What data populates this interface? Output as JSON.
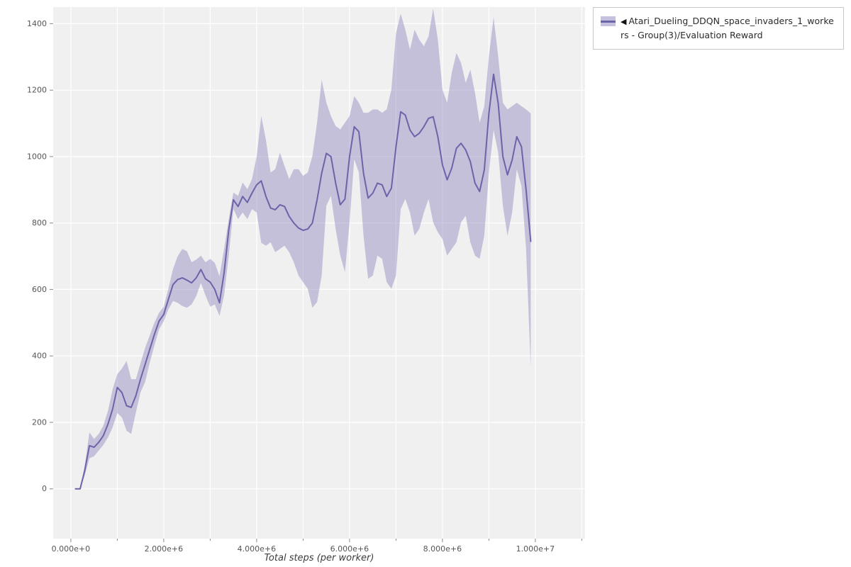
{
  "page": {
    "background": "#ffffff"
  },
  "legend": {
    "marker": "◀",
    "label": "Atari_Dueling_DDQN_space_invaders_1_workers - Group(3)/Evaluation Reward"
  },
  "chart_data": {
    "type": "line",
    "title": "",
    "xlabel": "Total steps (per worker)",
    "ylabel": "",
    "xlim": [
      -380000,
      11070000
    ],
    "ylim": [
      -150,
      1450
    ],
    "grid": true,
    "legend_position": "top-right-outside",
    "plot_bg": "#f0f0f0",
    "grid_color": "#ffffff",
    "line_color": "#6c64a9",
    "band_color": "#8d84bf",
    "band_opacity": 0.45,
    "tick_color": "#888888",
    "tick_label_color": "#555555",
    "x_ticks": [
      {
        "value": 0,
        "label": "0.000e+0"
      },
      {
        "value": 2000000,
        "label": "2.000e+6"
      },
      {
        "value": 4000000,
        "label": "4.000e+6"
      },
      {
        "value": 6000000,
        "label": "6.000e+6"
      },
      {
        "value": 8000000,
        "label": "8.000e+6"
      },
      {
        "value": 10000000,
        "label": "1.000e+7"
      }
    ],
    "x_minor_ticks": [
      1000000,
      3000000,
      5000000,
      7000000,
      9000000,
      11000000
    ],
    "y_ticks": [
      {
        "value": 0,
        "label": "0"
      },
      {
        "value": 200,
        "label": "200"
      },
      {
        "value": 400,
        "label": "400"
      },
      {
        "value": 600,
        "label": "600"
      },
      {
        "value": 800,
        "label": "800"
      },
      {
        "value": 1000,
        "label": "1000"
      },
      {
        "value": 1200,
        "label": "1200"
      },
      {
        "value": 1400,
        "label": "1400"
      }
    ],
    "x": [
      100000,
      200000,
      300000,
      400000,
      500000,
      600000,
      700000,
      800000,
      900000,
      1000000,
      1100000,
      1200000,
      1300000,
      1400000,
      1500000,
      1600000,
      1700000,
      1800000,
      1900000,
      2000000,
      2100000,
      2200000,
      2300000,
      2400000,
      2500000,
      2600000,
      2700000,
      2800000,
      2900000,
      3000000,
      3100000,
      3200000,
      3300000,
      3400000,
      3500000,
      3600000,
      3700000,
      3800000,
      3900000,
      4000000,
      4100000,
      4200000,
      4300000,
      4400000,
      4500000,
      4600000,
      4700000,
      4800000,
      4900000,
      5000000,
      5100000,
      5200000,
      5300000,
      5400000,
      5500000,
      5600000,
      5700000,
      5800000,
      5900000,
      6000000,
      6100000,
      6200000,
      6300000,
      6400000,
      6500000,
      6600000,
      6700000,
      6800000,
      6900000,
      7000000,
      7100000,
      7200000,
      7300000,
      7400000,
      7500000,
      7600000,
      7700000,
      7800000,
      7900000,
      8000000,
      8100000,
      8200000,
      8300000,
      8400000,
      8500000,
      8600000,
      8700000,
      8800000,
      8900000,
      9000000,
      9100000,
      9200000,
      9300000,
      9400000,
      9500000,
      9600000,
      9700000,
      9800000,
      9900000
    ],
    "series": [
      {
        "name": "Atari_Dueling_DDQN_space_invaders_1_workers - Group(3)/Evaluation Reward (mean)",
        "values": [
          0,
          0,
          55,
          130,
          125,
          140,
          160,
          195,
          240,
          305,
          290,
          250,
          245,
          280,
          330,
          375,
          420,
          465,
          505,
          525,
          570,
          615,
          630,
          635,
          628,
          620,
          635,
          660,
          632,
          622,
          600,
          560,
          650,
          780,
          870,
          850,
          880,
          862,
          890,
          915,
          927,
          880,
          845,
          840,
          855,
          850,
          820,
          800,
          785,
          778,
          782,
          800,
          870,
          950,
          1010,
          1000,
          920,
          855,
          872,
          1000,
          1090,
          1075,
          950,
          875,
          890,
          920,
          915,
          880,
          905,
          1030,
          1135,
          1125,
          1080,
          1060,
          1070,
          1090,
          1115,
          1120,
          1060,
          975,
          930,
          965,
          1025,
          1040,
          1020,
          985,
          920,
          895,
          960,
          1130,
          1248,
          1160,
          1000,
          945,
          990,
          1060,
          1030,
          900,
          745
        ]
      },
      {
        "name": "band_upper",
        "values": [
          0,
          0,
          70,
          170,
          150,
          165,
          190,
          235,
          300,
          345,
          362,
          385,
          330,
          330,
          378,
          425,
          462,
          500,
          530,
          548,
          602,
          662,
          700,
          722,
          715,
          682,
          690,
          702,
          682,
          692,
          680,
          640,
          722,
          812,
          892,
          882,
          922,
          902,
          932,
          1000,
          1122,
          1050,
          952,
          962,
          1012,
          972,
          932,
          962,
          962,
          942,
          952,
          1002,
          1102,
          1232,
          1162,
          1122,
          1092,
          1082,
          1102,
          1122,
          1182,
          1162,
          1132,
          1132,
          1142,
          1142,
          1132,
          1142,
          1202,
          1372,
          1430,
          1382,
          1322,
          1382,
          1352,
          1332,
          1362,
          1445,
          1352,
          1202,
          1162,
          1252,
          1312,
          1282,
          1222,
          1262,
          1192,
          1102,
          1152,
          1302,
          1420,
          1302,
          1162,
          1142,
          1152,
          1162,
          1152,
          1142,
          1130
        ]
      },
      {
        "name": "band_lower",
        "values": [
          0,
          0,
          40,
          92,
          98,
          115,
          132,
          155,
          185,
          228,
          215,
          175,
          165,
          230,
          290,
          322,
          380,
          432,
          480,
          505,
          540,
          565,
          560,
          550,
          545,
          555,
          580,
          620,
          582,
          548,
          555,
          520,
          582,
          702,
          842,
          812,
          832,
          812,
          842,
          832,
          740,
          732,
          742,
          712,
          722,
          732,
          712,
          682,
          642,
          622,
          602,
          545,
          562,
          642,
          852,
          882,
          782,
          702,
          652,
          802,
          992,
          952,
          762,
          632,
          642,
          702,
          692,
          622,
          602,
          642,
          842,
          872,
          832,
          762,
          782,
          832,
          872,
          802,
          772,
          752,
          702,
          722,
          742,
          802,
          822,
          742,
          702,
          692,
          762,
          952,
          1080,
          1012,
          852,
          762,
          832,
          962,
          912,
          722,
          365
        ]
      }
    ]
  }
}
